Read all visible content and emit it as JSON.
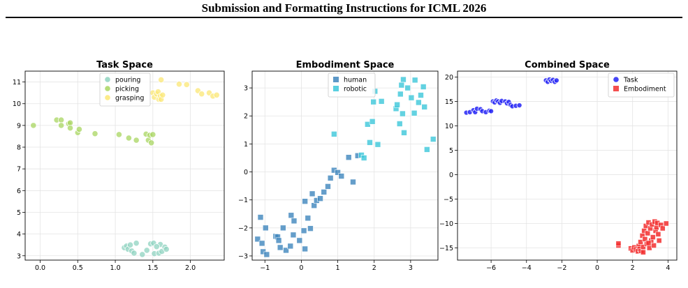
{
  "header": {
    "title": "Submission and Formatting Instructions for ICML 2026"
  },
  "caption": "",
  "colors": {
    "pouring": "#8fd3c0",
    "picking": "#a8d660",
    "grasping": "#fbe774",
    "human": "#3f86bd",
    "robotic": "#3cc7da",
    "task": "#2525f5",
    "embodiment": "#f22f2f"
  },
  "chart_data": [
    {
      "type": "scatter",
      "title": "Task Space",
      "xlim": [
        -0.2,
        2.45
      ],
      "ylim": [
        2.8,
        11.5
      ],
      "xticks": [
        "0.0",
        "0.5",
        "1.0",
        "1.5",
        "2.0"
      ],
      "xtick_values": [
        0,
        0.5,
        1.0,
        1.5,
        2.0
      ],
      "yticks": [
        "3",
        "4",
        "5",
        "6",
        "7",
        "8",
        "9",
        "10",
        "11"
      ],
      "ytick_values": [
        3,
        4,
        5,
        6,
        7,
        8,
        9,
        10,
        11
      ],
      "grid": true,
      "legend_position": "top-center",
      "marker": "circle",
      "series": [
        {
          "name": "pouring",
          "color_key": "pouring",
          "points": [
            [
              1.12,
              3.37
            ],
            [
              1.15,
              3.45
            ],
            [
              1.17,
              3.3
            ],
            [
              1.2,
              3.5
            ],
            [
              1.22,
              3.22
            ],
            [
              1.25,
              3.12
            ],
            [
              1.28,
              3.58
            ],
            [
              1.36,
              3.06
            ],
            [
              1.42,
              3.25
            ],
            [
              1.47,
              3.55
            ],
            [
              1.51,
              3.58
            ],
            [
              1.52,
              3.1
            ],
            [
              1.58,
              3.12
            ],
            [
              1.6,
              3.52
            ],
            [
              1.62,
              3.2
            ],
            [
              1.66,
              3.4
            ],
            [
              1.68,
              3.3
            ],
            [
              1.55,
              3.42
            ]
          ]
        },
        {
          "name": "picking",
          "color_key": "picking",
          "points": [
            [
              -0.09,
              9.0
            ],
            [
              0.22,
              9.25
            ],
            [
              0.28,
              9.25
            ],
            [
              0.28,
              9.0
            ],
            [
              0.38,
              9.08
            ],
            [
              0.4,
              9.12
            ],
            [
              0.4,
              8.88
            ],
            [
              0.5,
              8.67
            ],
            [
              0.52,
              8.82
            ],
            [
              0.73,
              8.62
            ],
            [
              1.05,
              8.58
            ],
            [
              1.18,
              8.42
            ],
            [
              1.28,
              8.32
            ],
            [
              1.41,
              8.6
            ],
            [
              1.44,
              8.32
            ],
            [
              1.46,
              8.55
            ],
            [
              1.48,
              8.2
            ],
            [
              1.5,
              8.58
            ]
          ]
        },
        {
          "name": "grasping",
          "color_key": "grasping",
          "points": [
            [
              1.5,
              10.5
            ],
            [
              1.52,
              10.3
            ],
            [
              1.55,
              10.45
            ],
            [
              1.57,
              10.55
            ],
            [
              1.58,
              10.2
            ],
            [
              1.6,
              10.35
            ],
            [
              1.61,
              11.1
            ],
            [
              1.61,
              10.2
            ],
            [
              1.63,
              10.4
            ],
            [
              1.85,
              10.9
            ],
            [
              1.95,
              10.88
            ],
            [
              2.1,
              10.6
            ],
            [
              2.15,
              10.45
            ],
            [
              2.25,
              10.5
            ],
            [
              2.3,
              10.35
            ],
            [
              2.35,
              10.4
            ]
          ]
        }
      ]
    },
    {
      "type": "scatter",
      "title": "Embodiment Space",
      "xlim": [
        -1.35,
        3.75
      ],
      "ylim": [
        -3.15,
        3.6
      ],
      "xticks": [
        "−1",
        "0",
        "1",
        "2",
        "3"
      ],
      "xtick_values": [
        -1,
        0,
        1,
        2,
        3
      ],
      "yticks": [
        "−3",
        "−2",
        "−1",
        "0",
        "1",
        "2",
        "3"
      ],
      "ytick_values": [
        -3,
        -2,
        -1,
        0,
        1,
        2,
        3
      ],
      "grid": true,
      "legend_position": "top-center",
      "marker": "square",
      "series": [
        {
          "name": "human",
          "color_key": "human",
          "points": [
            [
              -1.2,
              -2.4
            ],
            [
              -1.12,
              -1.62
            ],
            [
              -1.08,
              -2.55
            ],
            [
              -1.05,
              -2.85
            ],
            [
              -0.98,
              -2.0
            ],
            [
              -0.95,
              -2.95
            ],
            [
              -0.7,
              -2.3
            ],
            [
              -0.65,
              -2.32
            ],
            [
              -0.62,
              -2.45
            ],
            [
              -0.58,
              -2.7
            ],
            [
              -0.5,
              -2.0
            ],
            [
              -0.42,
              -2.8
            ],
            [
              -0.3,
              -2.65
            ],
            [
              -0.28,
              -1.55
            ],
            [
              -0.22,
              -2.25
            ],
            [
              -0.2,
              -1.75
            ],
            [
              -0.05,
              -2.45
            ],
            [
              0.07,
              -2.1
            ],
            [
              0.1,
              -1.05
            ],
            [
              0.1,
              -2.75
            ],
            [
              0.18,
              -1.65
            ],
            [
              0.25,
              -2.02
            ],
            [
              0.3,
              -0.78
            ],
            [
              0.35,
              -1.2
            ],
            [
              0.42,
              -1.02
            ],
            [
              0.52,
              -0.95
            ],
            [
              0.62,
              -0.72
            ],
            [
              0.73,
              -0.52
            ],
            [
              0.8,
              -0.22
            ],
            [
              0.9,
              0.06
            ],
            [
              1.0,
              -0.02
            ],
            [
              1.1,
              -0.15
            ],
            [
              1.3,
              0.52
            ],
            [
              1.42,
              -0.36
            ],
            [
              1.55,
              0.58
            ]
          ]
        },
        {
          "name": "robotic",
          "color_key": "robotic",
          "points": [
            [
              0.9,
              1.35
            ],
            [
              1.65,
              0.6
            ],
            [
              1.72,
              0.5
            ],
            [
              1.82,
              1.7
            ],
            [
              1.88,
              1.05
            ],
            [
              1.95,
              1.8
            ],
            [
              1.98,
              2.5
            ],
            [
              2.02,
              2.88
            ],
            [
              2.1,
              0.98
            ],
            [
              2.2,
              2.52
            ],
            [
              2.6,
              2.26
            ],
            [
              2.63,
              2.4
            ],
            [
              2.7,
              1.72
            ],
            [
              2.72,
              2.78
            ],
            [
              2.78,
              2.08
            ],
            [
              2.8,
              3.3
            ],
            [
              2.82,
              1.4
            ],
            [
              2.92,
              3.0
            ],
            [
              3.02,
              2.65
            ],
            [
              3.1,
              2.1
            ],
            [
              3.12,
              3.28
            ],
            [
              3.22,
              2.48
            ],
            [
              3.28,
              2.74
            ],
            [
              3.35,
              3.04
            ],
            [
              3.38,
              2.32
            ],
            [
              3.45,
              0.8
            ],
            [
              3.62,
              1.17
            ],
            [
              2.75,
              3.1
            ]
          ]
        }
      ]
    },
    {
      "type": "scatter",
      "title": "Combined Space",
      "xlim": [
        -7.9,
        4.5
      ],
      "ylim": [
        -17.5,
        21.2
      ],
      "xticks": [
        "−6",
        "−4",
        "−2",
        "0",
        "2",
        "4"
      ],
      "xtick_values": [
        -6,
        -4,
        -2,
        0,
        2,
        4
      ],
      "yticks": [
        "−15",
        "−10",
        "−5",
        "0",
        "5",
        "10",
        "15",
        "20"
      ],
      "ytick_values": [
        -15,
        -10,
        -5,
        0,
        5,
        10,
        15,
        20
      ],
      "grid": true,
      "legend_position": "top-right",
      "series": [
        {
          "name": "Task",
          "color_key": "task",
          "marker": "circle",
          "points": [
            [
              -7.4,
              12.7
            ],
            [
              -7.2,
              12.8
            ],
            [
              -7.0,
              13.2
            ],
            [
              -6.9,
              12.8
            ],
            [
              -6.8,
              13.5
            ],
            [
              -6.6,
              13.4
            ],
            [
              -6.5,
              13.0
            ],
            [
              -6.3,
              12.8
            ],
            [
              -6.1,
              13.1
            ],
            [
              -6.0,
              13.0
            ],
            [
              -5.9,
              15.0
            ],
            [
              -5.8,
              14.8
            ],
            [
              -5.7,
              15.2
            ],
            [
              -5.6,
              15.0
            ],
            [
              -5.5,
              14.7
            ],
            [
              -5.4,
              15.1
            ],
            [
              -5.2,
              15.0
            ],
            [
              -5.1,
              14.6
            ],
            [
              -5.0,
              14.9
            ],
            [
              -4.9,
              14.3
            ],
            [
              -4.8,
              14.0
            ],
            [
              -4.6,
              14.1
            ],
            [
              -4.4,
              14.2
            ],
            [
              -2.9,
              19.3
            ],
            [
              -2.8,
              19.0
            ],
            [
              -2.7,
              19.5
            ],
            [
              -2.6,
              19.2
            ],
            [
              -2.5,
              19.4
            ],
            [
              -2.4,
              19.0
            ],
            [
              -2.3,
              19.3
            ]
          ]
        },
        {
          "name": "Embodiment",
          "color_key": "embodiment",
          "marker": "square",
          "points": [
            [
              1.2,
              -14.5
            ],
            [
              1.2,
              -14.1
            ],
            [
              1.9,
              -15.1
            ],
            [
              2.0,
              -15.5
            ],
            [
              2.1,
              -14.9
            ],
            [
              2.2,
              -15.3
            ],
            [
              2.3,
              -15.7
            ],
            [
              2.35,
              -14.6
            ],
            [
              2.4,
              -15.2
            ],
            [
              2.45,
              -13.8
            ],
            [
              2.5,
              -15.6
            ],
            [
              2.55,
              -12.5
            ],
            [
              2.6,
              -14.8
            ],
            [
              2.65,
              -11.5
            ],
            [
              2.7,
              -13.2
            ],
            [
              2.75,
              -10.5
            ],
            [
              2.8,
              -14.2
            ],
            [
              2.85,
              -12.0
            ],
            [
              2.9,
              -9.8
            ],
            [
              2.95,
              -15.0
            ],
            [
              3.0,
              -11.0
            ],
            [
              3.05,
              -13.5
            ],
            [
              3.1,
              -10.2
            ],
            [
              3.15,
              -12.8
            ],
            [
              3.2,
              -14.5
            ],
            [
              3.25,
              -9.6
            ],
            [
              3.3,
              -11.5
            ],
            [
              3.35,
              -10.8
            ],
            [
              3.4,
              -9.9
            ],
            [
              3.45,
              -12.2
            ],
            [
              3.5,
              -13.5
            ],
            [
              3.6,
              -10.3
            ],
            [
              3.7,
              -11.0
            ],
            [
              3.9,
              -10.0
            ],
            [
              2.9,
              -14.0
            ],
            [
              2.6,
              -15.9
            ]
          ]
        }
      ]
    }
  ]
}
